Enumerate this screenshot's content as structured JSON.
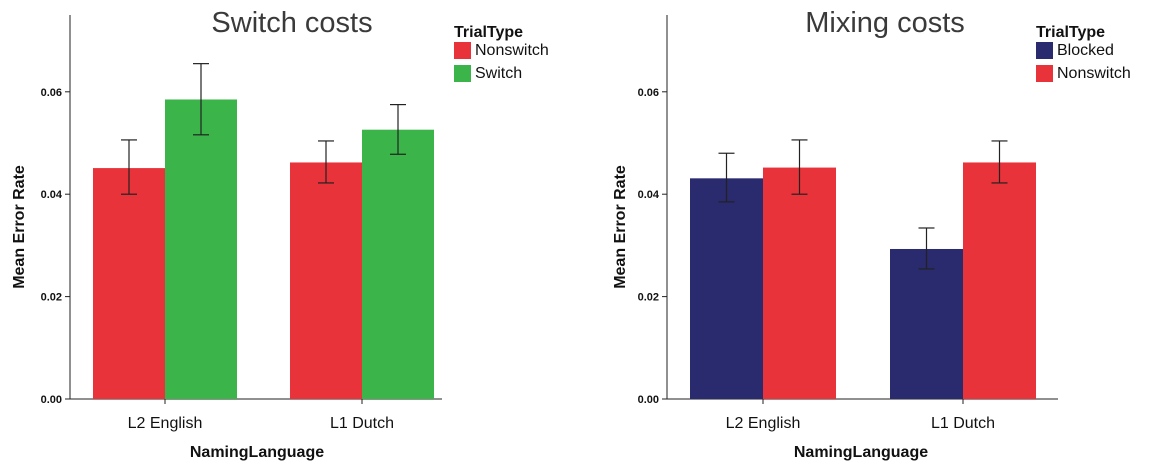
{
  "chart_data": [
    {
      "type": "bar",
      "title": "Switch costs",
      "xlabel": "NamingLanguage",
      "ylabel": "Mean Error Rate",
      "ylim": [
        0,
        0.075
      ],
      "yticks": [
        "0.00",
        "0.02",
        "0.04",
        "0.06"
      ],
      "yticks_values": [
        0,
        0.02,
        0.04,
        0.06
      ],
      "categories": [
        "L2 English",
        "L1 Dutch"
      ],
      "legend_title": "TrialType",
      "legend_position": "top-right",
      "series": [
        {
          "name": "Nonswitch",
          "color": "#e8333a",
          "values": [
            0.0451,
            0.0462
          ],
          "err_low": [
            0.04,
            0.0422
          ],
          "err_high": [
            0.0506,
            0.0504
          ]
        },
        {
          "name": "Switch",
          "color": "#3bb44a",
          "values": [
            0.0585,
            0.0526
          ],
          "err_low": [
            0.0516,
            0.0478
          ],
          "err_high": [
            0.0655,
            0.0575
          ]
        }
      ]
    },
    {
      "type": "bar",
      "title": "Mixing costs",
      "xlabel": "NamingLanguage",
      "ylabel": "Mean Error Rate",
      "ylim": [
        0,
        0.075
      ],
      "yticks": [
        "0.00",
        "0.02",
        "0.04",
        "0.06"
      ],
      "yticks_values": [
        0,
        0.02,
        0.04,
        0.06
      ],
      "categories": [
        "L2 English",
        "L1 Dutch"
      ],
      "legend_title": "TrialType",
      "legend_position": "top-right",
      "series": [
        {
          "name": "Blocked",
          "color": "#2a2a6e",
          "values": [
            0.0431,
            0.0293
          ],
          "err_low": [
            0.0385,
            0.0254
          ],
          "err_high": [
            0.048,
            0.0334
          ]
        },
        {
          "name": "Nonswitch",
          "color": "#e8333a",
          "values": [
            0.0452,
            0.0462
          ],
          "err_low": [
            0.04,
            0.0422
          ],
          "err_high": [
            0.0506,
            0.0504
          ]
        }
      ]
    }
  ]
}
